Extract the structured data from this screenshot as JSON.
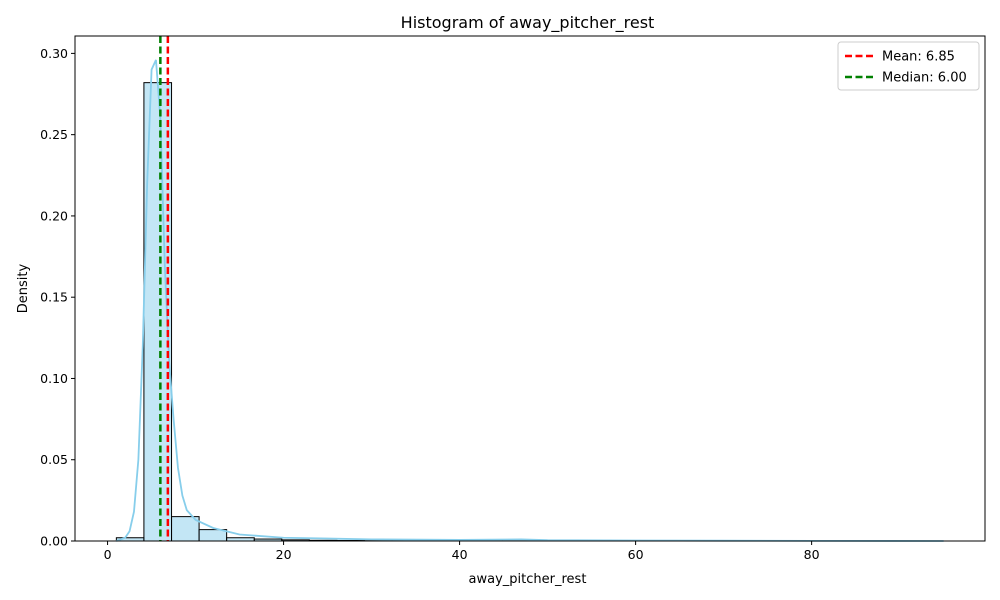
{
  "chart_data": {
    "type": "bar",
    "title": "Histogram of away_pitcher_rest",
    "xlabel": "away_pitcher_rest",
    "ylabel": "Density",
    "xlim": [
      -3.7,
      99.7
    ],
    "ylim": [
      0,
      0.3107
    ],
    "xticks": [
      0,
      20,
      40,
      60,
      80
    ],
    "yticks": [
      0.0,
      0.05,
      0.1,
      0.15,
      0.2,
      0.25,
      0.3
    ],
    "ytick_labels": [
      "0.00",
      "0.05",
      "0.10",
      "0.15",
      "0.20",
      "0.25",
      "0.30"
    ],
    "grid": false,
    "legend_position": "top-right",
    "bin_edges": [
      1.0,
      4.13,
      7.27,
      10.4,
      13.53,
      16.67,
      19.8,
      22.93,
      26.07,
      29.2,
      32.33,
      35.47,
      38.6,
      41.73,
      44.87,
      48.0,
      51.13,
      54.27,
      57.4,
      60.53,
      63.67,
      66.8,
      69.93,
      73.07,
      76.2,
      79.33,
      82.47,
      85.6,
      88.73,
      91.87,
      95.0
    ],
    "density": [
      0.002,
      0.282,
      0.015,
      0.007,
      0.002,
      0.0012,
      0.0007,
      0.0004,
      0.0003,
      0.0002,
      0.0002,
      0.0001,
      0.0001,
      0.0001,
      0.0001,
      0.0001,
      0.0,
      0.0,
      0.0,
      0.0,
      0.0,
      0.0,
      0.0,
      0.0,
      0.0,
      0.0,
      0.0,
      0.0,
      0.0,
      0.0
    ],
    "kde": {
      "x": [
        1.0,
        2.0,
        2.5,
        3.0,
        3.5,
        4.0,
        4.5,
        5.0,
        5.5,
        6.0,
        6.5,
        7.0,
        7.5,
        8.0,
        8.5,
        9.0,
        10.0,
        12.0,
        15.0,
        20.0,
        25.0,
        30.0,
        40.0,
        47.0,
        50.0,
        60.0,
        70.0,
        80.0,
        95.0
      ],
      "y": [
        0.0,
        0.002,
        0.006,
        0.018,
        0.05,
        0.12,
        0.22,
        0.29,
        0.296,
        0.26,
        0.17,
        0.11,
        0.075,
        0.045,
        0.028,
        0.019,
        0.013,
        0.008,
        0.004,
        0.002,
        0.0015,
        0.001,
        0.0007,
        0.001,
        0.0005,
        0.0003,
        0.0002,
        0.0001,
        0.0
      ]
    },
    "series": [
      {
        "name": "Mean: 6.85",
        "kind": "vline",
        "x": 6.85,
        "color": "#ff0000",
        "dash": "dashed"
      },
      {
        "name": "Median: 6.00",
        "kind": "vline",
        "x": 6.0,
        "color": "#008000",
        "dash": "dashed"
      }
    ],
    "colors": {
      "bar_fill": "#87ceeb",
      "bar_fill_opacity": 0.5,
      "bar_edge": "#000000",
      "kde_line": "#87ceeb"
    }
  }
}
